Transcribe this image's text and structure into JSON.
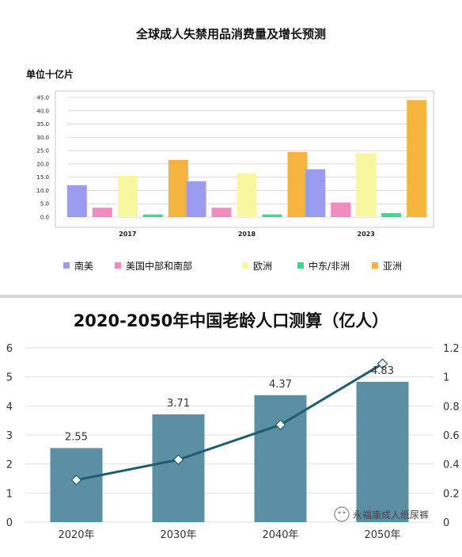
{
  "chart_data": [
    {
      "type": "bar",
      "title": "全球成人失禁用品消费量及增长预测",
      "unit_label": "单位十亿片",
      "categories": [
        "2017",
        "2018",
        "2023"
      ],
      "yticks": [
        "0.0",
        "5.0",
        "10.0",
        "15.0",
        "20.0",
        "25.0",
        "30.0",
        "35.0",
        "40.0",
        "45.0"
      ],
      "ylim": [
        0,
        45
      ],
      "grid": true,
      "legend_position": "bottom",
      "series": [
        {
          "name": "南美",
          "color": "#9b9bf0",
          "values": [
            12.0,
            13.5,
            18.0
          ]
        },
        {
          "name": "美国中部和南部",
          "color": "#f08cc0",
          "values": [
            3.5,
            3.5,
            5.5
          ]
        },
        {
          "name": "欧洲",
          "color": "#f7f7a0",
          "values": [
            15.5,
            16.5,
            24.0
          ]
        },
        {
          "name": "中东/非洲",
          "color": "#40d890",
          "values": [
            1.0,
            1.0,
            1.5
          ]
        },
        {
          "name": "亚洲",
          "color": "#f5b440",
          "values": [
            21.5,
            24.5,
            44.0
          ]
        }
      ]
    },
    {
      "type": "bar",
      "title": "2020-2050年中国老龄人口测算（亿人）",
      "categories": [
        "2020年",
        "2030年",
        "2040年",
        "2050年"
      ],
      "bar_values": [
        2.55,
        3.71,
        4.37,
        4.83
      ],
      "bar_labels": [
        "2.55",
        "3.71",
        "4.37",
        "4.83"
      ],
      "bar_color": "#5b8fa3",
      "line_values": [
        0.29,
        0.43,
        0.67,
        1.09
      ],
      "line_color": "#1f5d6c",
      "y_left_ticks": [
        "0",
        "1",
        "2",
        "3",
        "4",
        "5",
        "6"
      ],
      "y_left_lim": [
        0,
        6
      ],
      "y_right_ticks": [
        "0",
        "0.2",
        "0.4",
        "0.6",
        "0.8",
        "1",
        "1.2"
      ],
      "y_right_lim": [
        0,
        1.2
      ],
      "grid": true
    }
  ],
  "watermark": "永福康成人纸尿裤"
}
